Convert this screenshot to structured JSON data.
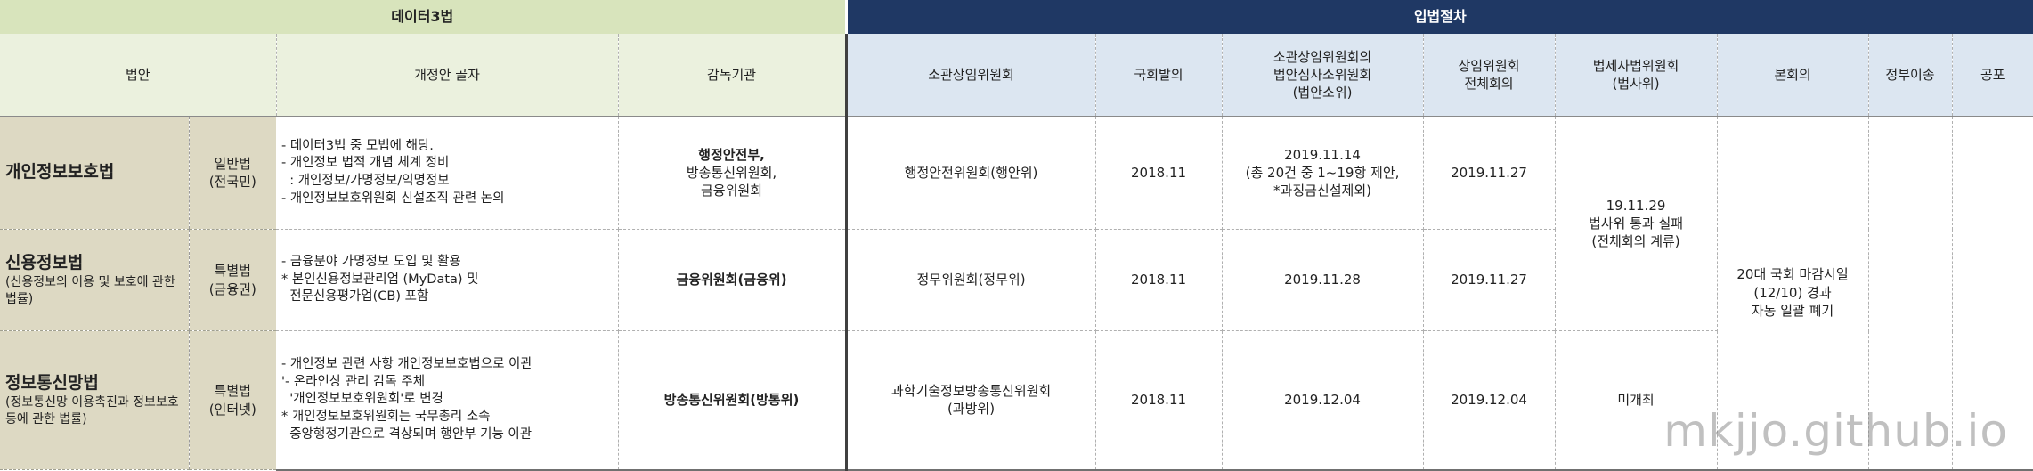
{
  "header": {
    "group_data3": "데이터3법",
    "group_legislation": "입법절차",
    "col_bill": "법안",
    "col_amendment": "개정안 골자",
    "col_supervisor": "감독기관",
    "col_standing_committee": "소관상임위원회",
    "col_submitted": "국회발의",
    "col_subcommittee": [
      "소관상임위원회의",
      "법안심사소위원회",
      "(법안소위)"
    ],
    "col_plenary_committee": [
      "상임위원회",
      "전체회의"
    ],
    "col_legislation_judiciary": [
      "법제사법위원회",
      "(법사위)"
    ],
    "col_main_session": "본회의",
    "col_gov_transfer": "정부이송",
    "col_promulgation": "공포"
  },
  "rows": [
    {
      "law_name": "개인정보보호법",
      "law_sub": "",
      "law_type": [
        "일반법",
        "(전국민)"
      ],
      "amendment": [
        "- 데이터3법 중 모법에 해당.",
        "- 개인정보 법적 개념 체계 정비",
        "  : 개인정보/가명정보/익명정보",
        "- 개인정보보호위원회 신설조직 관련 논의"
      ],
      "supervisor_bold": "행정안전부,",
      "supervisor_rest": [
        "방송통신위원회,",
        "금융위원회"
      ],
      "standing_committee": "행정안전위원회(행안위)",
      "submitted": "2018.11",
      "subcommittee": [
        "2019.11.14",
        "(총 20건 중 1~19항 제안,",
        "*과징금신설제외)"
      ],
      "plenary_committee": "2019.11.27"
    },
    {
      "law_name": "신용정보법",
      "law_sub": "(신용정보의 이용 및 보호에 관한 법률)",
      "law_type": [
        "특별법",
        "(금융권)"
      ],
      "amendment": [
        "- 금융분야 가명정보 도입 및 활용",
        "* 본인신용정보관리업 (MyData) 및",
        "  전문신용평가업(CB) 포함"
      ],
      "supervisor_bold": "금융위원회(금융위)",
      "supervisor_rest": [],
      "standing_committee": "정무위원회(정무위)",
      "submitted": "2018.11",
      "subcommittee": [
        "2019.11.28"
      ],
      "plenary_committee": "2019.11.27"
    },
    {
      "law_name": "정보통신망법",
      "law_sub": "(정보통신망 이용촉진과 정보보호 등에 관한 법률)",
      "law_type": [
        "특별법",
        "(인터넷)"
      ],
      "amendment": [
        "- 개인정보 관련 사항 개인정보보호법으로 이관",
        "'- 온라인상 관리 감독 주체",
        "  '개인정보보호위원회'로 변경",
        "* 개인정보보호위원회는 국무총리 소속",
        "  중앙행정기관으로 격상되며 행안부 기능 이관"
      ],
      "supervisor_bold": "방송통신위원회(방통위)",
      "supervisor_rest": [],
      "standing_committee": "과학기술정보방송통신위원회",
      "standing_committee_2": "(과방위)",
      "submitted": "2018.11",
      "subcommittee": [
        "2019.12.04"
      ],
      "plenary_committee": "2019.12.04",
      "legislation_judiciary": "미개최"
    }
  ],
  "legislation_judiciary_merged": [
    "19.11.29",
    "법사위 통과 실패",
    "(전체회의 계류)"
  ],
  "main_session_merged": [
    "20대 국회 마감시일",
    "(12/10) 경과",
    "자동 일괄 폐기"
  ],
  "watermark": "mkjjo.github.io"
}
